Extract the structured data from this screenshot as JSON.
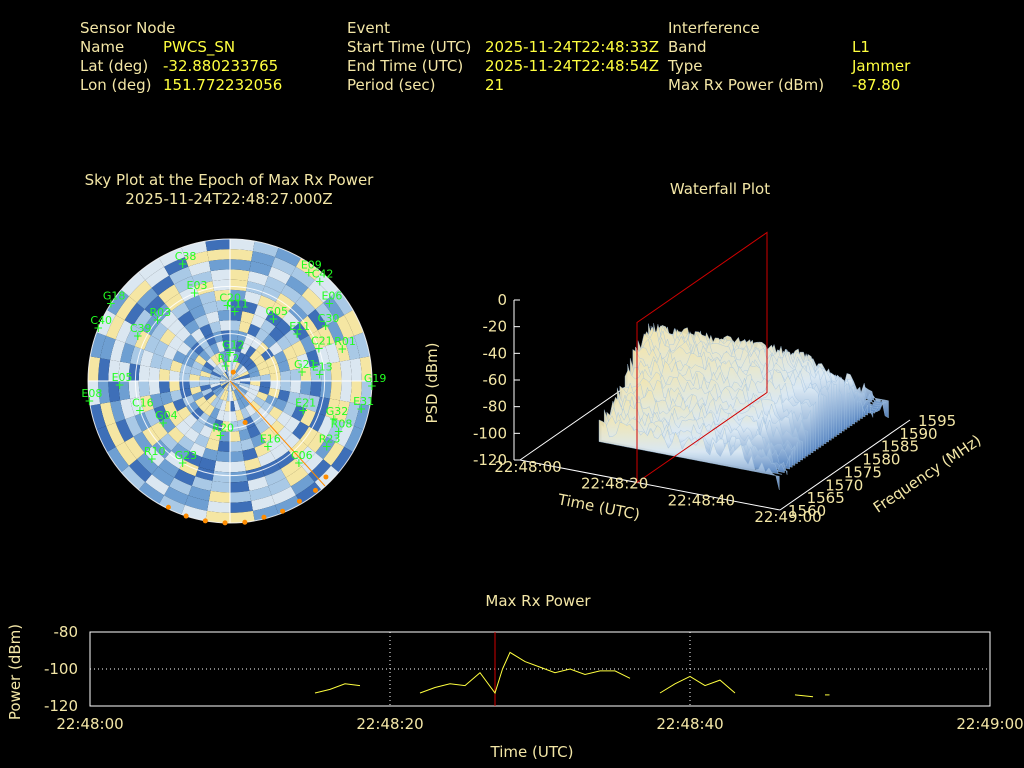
{
  "header": {
    "sensor": {
      "heading": "Sensor Node",
      "rows": [
        {
          "label": "Name",
          "value": "PWCS_SN"
        },
        {
          "label": "Lat (deg)",
          "value": "-32.880233765"
        },
        {
          "label": "Lon (deg)",
          "value": "151.772232056"
        }
      ]
    },
    "event": {
      "heading": "Event",
      "rows": [
        {
          "label": "Start Time (UTC)",
          "value": "2025-11-24T22:48:33Z"
        },
        {
          "label": "End Time (UTC)",
          "value": "2025-11-24T22:48:54Z"
        },
        {
          "label": "Period (sec)",
          "value": "21"
        }
      ]
    },
    "interference": {
      "heading": "Interference",
      "rows": [
        {
          "label": "Band",
          "value": "L1"
        },
        {
          "label": "Type",
          "value": "Jammer"
        },
        {
          "label": "Max Rx Power (dBm)",
          "value": "-87.80"
        }
      ]
    }
  },
  "colors": {
    "label": "#f3e6a6",
    "value": "#ffff3f",
    "sat": "#22ff22",
    "jammer": "#ff8c00",
    "line": "#ffff3f",
    "marker": "#d00000",
    "grid": "#ffffff",
    "skyPalette": [
      "#f5e6a3",
      "#dbe7f1",
      "#a9c9e6",
      "#6e9fd2",
      "#3e6fb8"
    ]
  },
  "chart_data": [
    {
      "type": "scatter",
      "title": "Sky Plot at the Epoch of Max Rx Power",
      "subtitle": "2025-11-24T22:48:27.000Z",
      "satellites": [
        {
          "id": "C38",
          "az": 338,
          "el": 10
        },
        {
          "id": "E06",
          "az": 52,
          "el": 10
        },
        {
          "id": "C42",
          "az": 42,
          "el": 5
        },
        {
          "id": "E09",
          "az": 36,
          "el": 5
        },
        {
          "id": "C30",
          "az": 60,
          "el": 20
        },
        {
          "id": "G18",
          "az": 303,
          "el": 0
        },
        {
          "id": "E03",
          "az": 338,
          "el": 30
        },
        {
          "id": "C20",
          "az": 358,
          "el": 42
        },
        {
          "id": "C11",
          "az": 4,
          "el": 46
        },
        {
          "id": "G05",
          "az": 35,
          "el": 42
        },
        {
          "id": "E11",
          "az": 55,
          "el": 38
        },
        {
          "id": "C21",
          "az": 70,
          "el": 30
        },
        {
          "id": "R01",
          "az": 74,
          "el": 16
        },
        {
          "id": "R03",
          "az": 310,
          "el": 30
        },
        {
          "id": "C40",
          "az": 292,
          "el": 0
        },
        {
          "id": "C39",
          "az": 296,
          "el": 25
        },
        {
          "id": "G21",
          "az": 83,
          "el": 44
        },
        {
          "id": "E13",
          "az": 86,
          "el": 33
        },
        {
          "id": "G19",
          "az": 92,
          "el": 0
        },
        {
          "id": "E05",
          "az": 268,
          "el": 20
        },
        {
          "id": "R12",
          "az": 344,
          "el": 80
        },
        {
          "id": "G12",
          "az": 0,
          "el": 72
        },
        {
          "id": "E08",
          "az": 262,
          "el": 0
        },
        {
          "id": "C16",
          "az": 252,
          "el": 30
        },
        {
          "id": "G04",
          "az": 238,
          "el": 40
        },
        {
          "id": "E21",
          "az": 112,
          "el": 40
        },
        {
          "id": "G32",
          "az": 110,
          "el": 20
        },
        {
          "id": "E31",
          "az": 102,
          "el": 5
        },
        {
          "id": "R08",
          "az": 115,
          "el": 14
        },
        {
          "id": "R23",
          "az": 124,
          "el": 16
        },
        {
          "id": "R20",
          "az": 190,
          "el": 55
        },
        {
          "id": "E16",
          "az": 150,
          "el": 42
        },
        {
          "id": "C06",
          "az": 140,
          "el": 22
        },
        {
          "id": "G23",
          "az": 210,
          "el": 30
        },
        {
          "id": "R10",
          "az": 225,
          "el": 20
        }
      ],
      "jammer_marks": [
        {
          "az": 160,
          "el": 62
        },
        {
          "az": 20,
          "el": 84
        },
        {
          "az": 135,
          "el": 4
        },
        {
          "az": 142,
          "el": 2
        },
        {
          "az": 150,
          "el": 2
        },
        {
          "az": 158,
          "el": 1
        },
        {
          "az": 166,
          "el": 1
        },
        {
          "az": 174,
          "el": 0
        },
        {
          "az": 182,
          "el": 0
        },
        {
          "az": 190,
          "el": 0
        },
        {
          "az": 198,
          "el": 0
        },
        {
          "az": 206,
          "el": 1
        }
      ],
      "elevation_rings": [
        0,
        30,
        60
      ]
    },
    {
      "type": "area",
      "title": "Waterfall Plot",
      "xlabel": "Time (UTC)",
      "ylabel": "Frequency (MHz)",
      "zlabel": "PSD (dBm)",
      "x_ticks": [
        "22:48:00",
        "22:48:20",
        "22:48:40",
        "22:49:00"
      ],
      "y_ticks": [
        "1560",
        "1565",
        "1570",
        "1575",
        "1580",
        "1585",
        "1590",
        "1595"
      ],
      "z_ticks": [
        "0",
        "-20",
        "-40",
        "-60",
        "-80",
        "-100",
        "-120"
      ],
      "zlim": [
        -120,
        0
      ],
      "marker_time": "22:48:27"
    },
    {
      "type": "line",
      "title": "Max Rx Power",
      "xlabel": "Time (UTC)",
      "ylabel": "Power (dBm)",
      "x_ticks": [
        "22:48:00",
        "22:48:20",
        "22:48:40",
        "22:49:00"
      ],
      "y_ticks": [
        "-80",
        "-100",
        "-120"
      ],
      "xlim": [
        0,
        60
      ],
      "ylim": [
        -120,
        -80
      ],
      "marker_x": 27,
      "segments": [
        [
          [
            15,
            -113
          ],
          [
            16,
            -111
          ],
          [
            17,
            -108
          ],
          [
            18,
            -109
          ]
        ],
        [
          [
            22,
            -113
          ],
          [
            23,
            -110
          ],
          [
            24,
            -108
          ],
          [
            25,
            -109
          ],
          [
            26,
            -102
          ],
          [
            27,
            -113
          ],
          [
            27.5,
            -100
          ]
        ],
        [
          [
            27.5,
            -100
          ],
          [
            28,
            -91
          ],
          [
            29,
            -96
          ],
          [
            30,
            -99
          ],
          [
            31,
            -102
          ],
          [
            32,
            -100
          ],
          [
            33,
            -103
          ],
          [
            34,
            -101
          ],
          [
            35,
            -101
          ],
          [
            36,
            -105
          ]
        ],
        [
          [
            38,
            -113
          ],
          [
            39,
            -108
          ],
          [
            40,
            -104
          ],
          [
            41,
            -109
          ],
          [
            42,
            -106
          ],
          [
            43,
            -113
          ]
        ],
        [
          [
            47,
            -114
          ],
          [
            48.2,
            -115
          ]
        ],
        [
          [
            49,
            -114
          ],
          [
            49.3,
            -114
          ]
        ]
      ]
    }
  ]
}
